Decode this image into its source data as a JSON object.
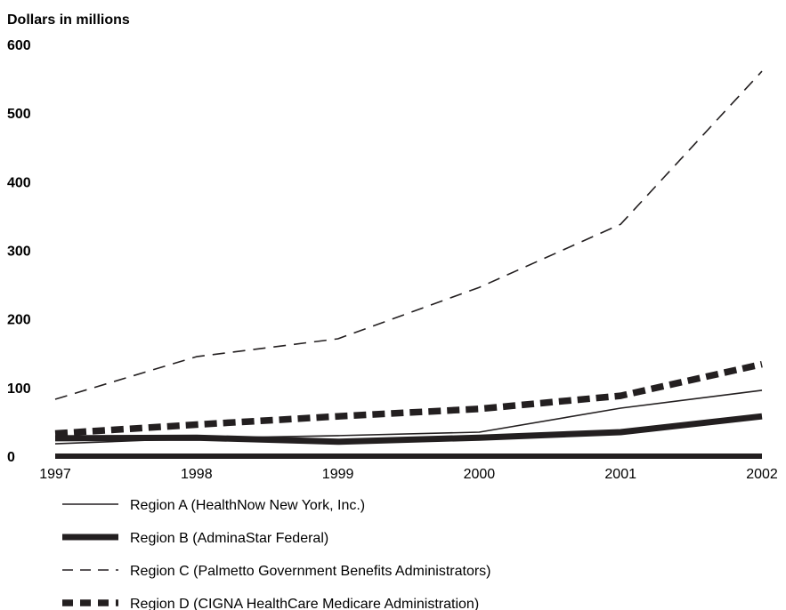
{
  "chart_data": {
    "type": "line",
    "ylabel": "Dollars in millions",
    "xlabel": "",
    "title": "",
    "x": [
      "1997",
      "1998",
      "1999",
      "2000",
      "2001",
      "2002"
    ],
    "ylim": [
      0,
      600
    ],
    "yticks": [
      "0",
      "100",
      "200",
      "300",
      "400",
      "500",
      "600"
    ],
    "grid": false,
    "legend_position": "bottom-left",
    "series": [
      {
        "name": "Region A (HealthNow New York, Inc.)",
        "style": "thin-solid",
        "color": "#231f20",
        "values": [
          18,
          26,
          30,
          35,
          70,
          96
        ]
      },
      {
        "name": "Region B (AdminaStar Federal)",
        "style": "thick-solid",
        "color": "#231f20",
        "values": [
          26,
          27,
          21,
          27,
          35,
          58
        ]
      },
      {
        "name": "Region C (Palmetto Government Benefits Administrators)",
        "style": "thin-dashed",
        "color": "#231f20",
        "values": [
          83,
          145,
          171,
          246,
          338,
          561
        ]
      },
      {
        "name": "Region D (CIGNA HealthCare Medicare Administration)",
        "style": "thick-dashed",
        "color": "#231f20",
        "values": [
          33,
          46,
          58,
          69,
          88,
          134
        ]
      }
    ]
  }
}
